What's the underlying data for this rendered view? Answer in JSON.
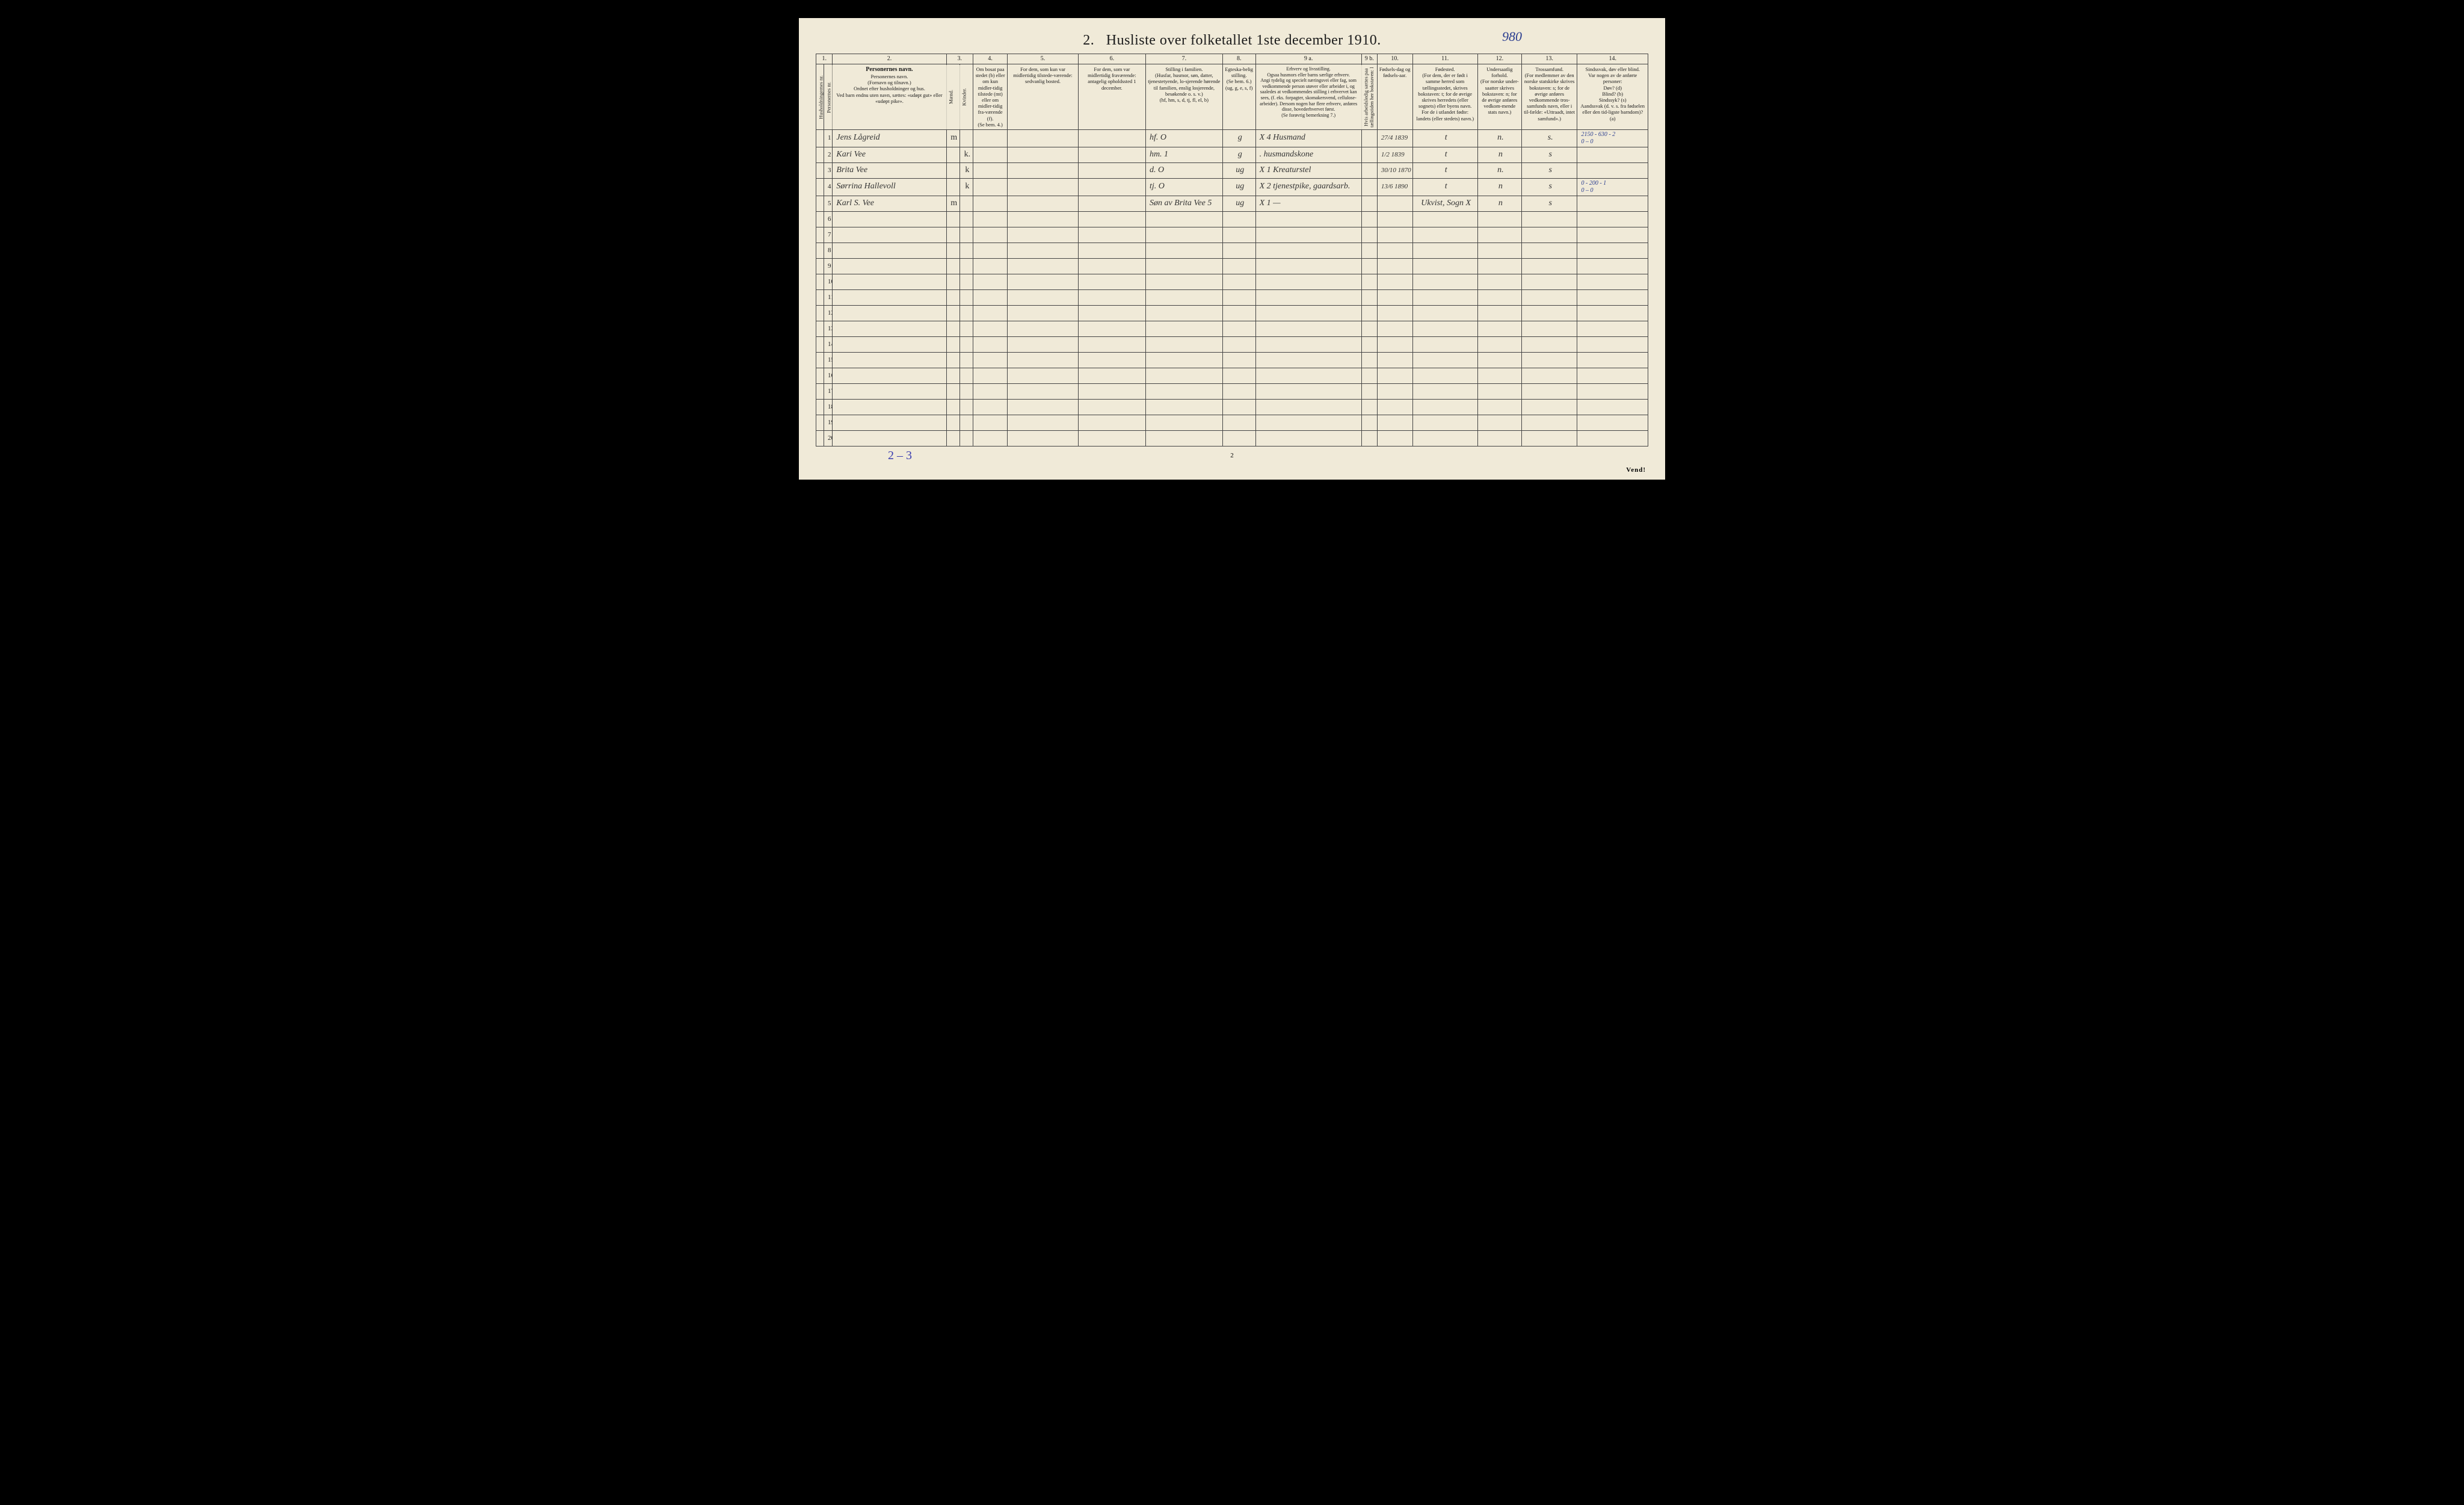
{
  "title_prefix": "2.",
  "title": "Husliste over folketallet 1ste december 1910.",
  "title_annotation": "980",
  "page_number": "2",
  "vend": "Vend!",
  "footer_annotation": "2 – 3",
  "colors": {
    "paper": "#f0ead8",
    "ink": "#1a1a1a",
    "border": "#444444",
    "handwriting": "#333333",
    "blue_ink": "#2a3d8f",
    "purple_ink": "#3a3db0",
    "background": "#000000"
  },
  "column_numbers": [
    "1.",
    "2.",
    "3.",
    "4.",
    "5.",
    "6.",
    "7.",
    "8.",
    "9 a.",
    "9 b.",
    "10.",
    "11.",
    "12.",
    "13.",
    "14."
  ],
  "column_widths_pct": [
    2.1,
    14.5,
    1.7,
    1.7,
    4.4,
    9.0,
    8.6,
    9.8,
    4.2,
    13.5,
    2.0,
    4.5,
    8.3,
    5.6,
    7.1,
    9.0
  ],
  "headers": {
    "c1a": "Husholdningernes nr.",
    "c1b": "Personernes nr.",
    "c2": "Personernes navn.\n(Fornavn og tilnavn.)\nOrdnet efter husholdninger og hus.\nVed barn endnu uten navn, sættes: «udøpt gut» eller «udøpt pike».",
    "c3": "Kjøn.",
    "c3a": "Mænd.",
    "c3b": "Kvinder.",
    "c3foot": "m.   k.",
    "c4": "Om bosat paa stedet (b) eller om kun midler-tidig tilstede (mt) eller om midler-tidig fra-værende (f).\n(Se bem. 4.)",
    "c5": "For dem, som kun var\nmidlertidig tilstede-værende:\nsedvanlig bosted.",
    "c6": "For dem, som var\nmidlertidig fraværende:\nantagelig opholdssted 1 december.",
    "c7": "Stilling i familien.\n(Husfar, husmor, søn, datter, tjenestetyende, lo-sjerende hørende til familien, enslig losjerende, besøkende o. s. v.)\n(hf, hm, s, d, tj, fl, el, b)",
    "c8": "Egteska-belig stilling.\n(Se bem. 6.)\n(ug, g, e, s, f)",
    "c9a": "Erhverv og livsstilling.\nOgsaa husmors eller barns særlige erhverv.\nAngi tydelig og specielt næringsvei eller fag, som vedkommende person utøver eller arbeider i, og saaledes at vedkommendes stilling i erhvervet kan sees, (f. eks. forpagter, skomakersvend, cellulose-arbeider). Dersom nogen har flere erhverv, anføres disse, hovederhvervet først.\n(Se forøvrig bemerkning 7.)",
    "c9b": "Hvis arbeidsledig sættes paa tællingstiden her bokstaven: l",
    "c10": "Fødsels-dag og fødsels-aar.",
    "c11": "Fødested.\n(For dem, der er født i samme herred som tællingsstedet, skrives bokstaven: t; for de øvrige skrives herredets (eller sognets) eller byens navn.\nFor de i utlandet fødte: landets (eller stedets) navn.)",
    "c12": "Undersaatlig forhold.\n(For norske under-saatter skrives bokstaven: n; for de øvrige anføres vedkom-mende stats navn.)",
    "c13": "Trossamfund.\n(For medlemmer av den norske statskirke skrives bokstaven: s; for de øvrige anføres vedkommende tros-samfunds navn, eller i til-fælde: «Uttraadt, intet samfund».)",
    "c14": "Sindssvak, døv eller blind.\nVar nogen av de anførte personer:\nDøv?    (d)\nBlind?   (b)\nSindssyk? (s)\nAandssvak (d. v. s. fra fødselen eller den tid-ligste barndom)? (a)"
  },
  "rows": [
    {
      "n": "1",
      "name": "Jens Lågreid",
      "sex_m": "m",
      "sex_k": "",
      "c7": "hf.     O",
      "c8": "g",
      "c9a": "X 4   Husmand",
      "c10": "27/4 1839",
      "c11": "t",
      "c12": "n.",
      "c13": "s.",
      "c14": "2150 - 630 - 2\n0 – 0"
    },
    {
      "n": "2",
      "name": "Kari Vee",
      "sex_m": "",
      "sex_k": "k.",
      "c7": "hm.    1",
      "c8": "g",
      "c9a": ".    husmandskone",
      "c10": "1/2 1839",
      "c11": "t",
      "c12": "n",
      "c13": "s",
      "c14": ""
    },
    {
      "n": "3",
      "name": "Brita Vee",
      "sex_m": "",
      "sex_k": "k",
      "c7": "d.      O",
      "c8": "ug",
      "c9a": "X 1   Kreaturstel",
      "c10": "30/10 1870",
      "c11": "t",
      "c12": "n.",
      "c13": "s",
      "c14": ""
    },
    {
      "n": "4",
      "name": "Sørrina Hallevoll",
      "sex_m": "",
      "sex_k": "k",
      "c7": "tj.     O",
      "c8": "ug",
      "c9a": "X 2  tjenestpike, gaardsarb.",
      "c10": "13/6 1890",
      "c11": "t",
      "c12": "n",
      "c13": "s",
      "c14": "0 - 200 - 1\n0 – 0"
    },
    {
      "n": "5",
      "name": "Karl S. Vee",
      "sex_m": "m",
      "sex_k": "",
      "c7": "Søn av Brita Vee 5",
      "c8": "ug",
      "c9a": "X 1     —",
      "c10": "",
      "c11": "Ukvist, Sogn  X",
      "c12": "n",
      "c13": "s",
      "c14": ""
    }
  ],
  "empty_rows_from": 6,
  "empty_rows_to": 20
}
